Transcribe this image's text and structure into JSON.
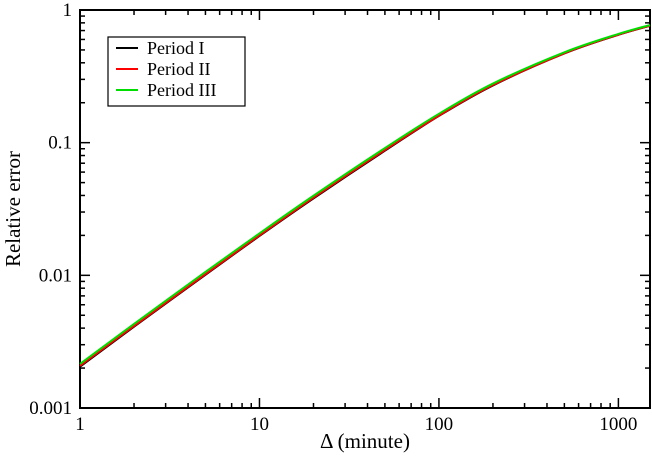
{
  "chart_data": {
    "type": "line",
    "title": "",
    "xlabel": "Δ (minute)",
    "ylabel": "Relative error",
    "xscale": "log",
    "yscale": "log",
    "xlim": [
      1,
      1500
    ],
    "ylim": [
      0.001,
      1
    ],
    "x_ticks": [
      1,
      10,
      100,
      1000
    ],
    "x_tick_labels": [
      "1",
      "10",
      "100",
      "1000"
    ],
    "y_ticks": [
      0.001,
      0.01,
      0.1,
      1
    ],
    "y_tick_labels": [
      "0.001",
      "0.01",
      "0.1",
      "1"
    ],
    "grid": false,
    "legend_position": "top-left",
    "x": [
      1,
      2,
      5,
      10,
      20,
      50,
      100,
      200,
      500,
      1000,
      1500
    ],
    "series": [
      {
        "name": "Period I",
        "color": "#000000",
        "values": [
          0.00205,
          0.0041,
          0.0101,
          0.0198,
          0.038,
          0.087,
          0.159,
          0.27,
          0.47,
          0.65,
          0.76
        ]
      },
      {
        "name": "Period II",
        "color": "#ff0000",
        "values": [
          0.00208,
          0.00415,
          0.0102,
          0.02,
          0.0385,
          0.088,
          0.16,
          0.272,
          0.472,
          0.652,
          0.762
        ]
      },
      {
        "name": "Period III",
        "color": "#00dd00",
        "values": [
          0.00215,
          0.0043,
          0.0106,
          0.0207,
          0.0398,
          0.091,
          0.165,
          0.279,
          0.48,
          0.66,
          0.77
        ]
      }
    ]
  }
}
